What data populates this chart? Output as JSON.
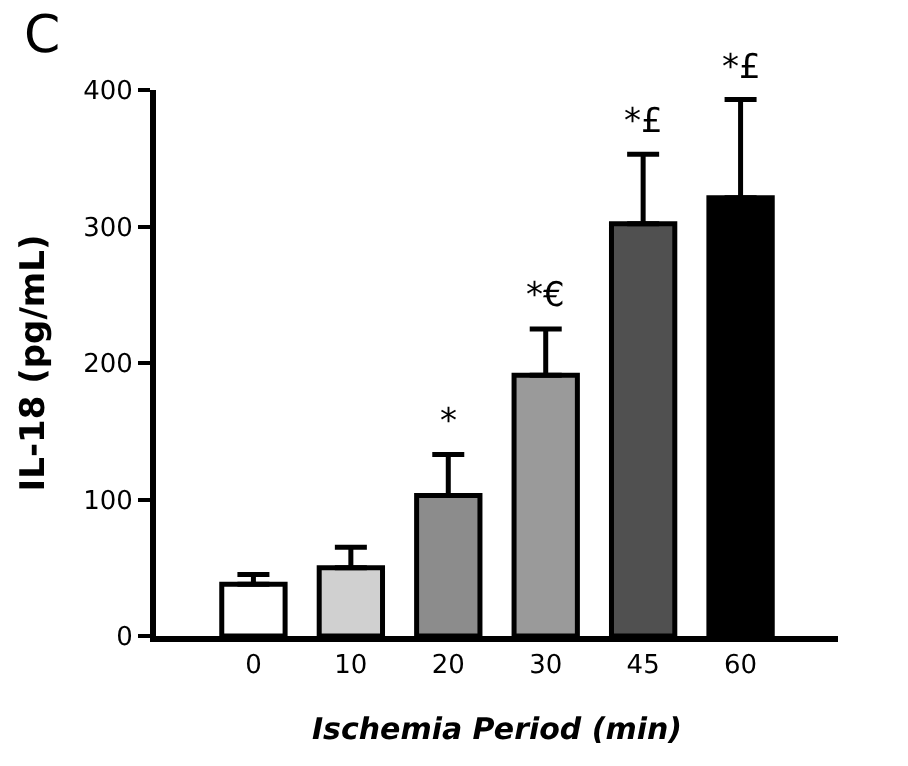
{
  "chart_data": {
    "type": "bar",
    "categories": [
      "0",
      "10",
      "20",
      "30",
      "45",
      "60"
    ],
    "values": [
      38,
      50,
      103,
      191,
      302,
      321
    ],
    "colors": [
      "#ffffff",
      "#d0d0d0",
      "#8c8c8c",
      "#9a9a9a",
      "#505050",
      "#000000"
    ],
    "errors": [
      [
        38,
        45
      ],
      [
        50,
        65
      ],
      [
        103,
        133
      ],
      [
        191,
        225
      ],
      [
        302,
        353
      ],
      [
        321,
        393
      ]
    ],
    "xlabel": "Ischemia Period (min)",
    "ylabel": "IL-18 (pg/mL)",
    "ylim": [
      0,
      400
    ],
    "yticks": [
      0,
      100,
      200,
      300,
      400
    ],
    "annotations": [
      "C",
      {
        "text": "*",
        "x": "20",
        "y": 133
      },
      {
        "text": "*€",
        "x": "30",
        "y": 225
      },
      {
        "text": "*£",
        "x": "45",
        "y": 353
      },
      {
        "text": "*£",
        "x": "60",
        "y": 393
      }
    ]
  }
}
